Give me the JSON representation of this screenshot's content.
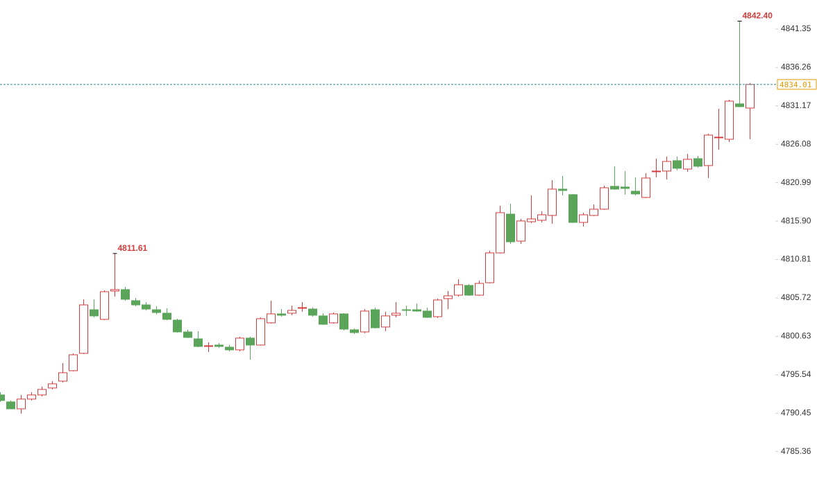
{
  "chart_data": {
    "type": "candlestick",
    "up_color": "#d23c3c",
    "down_color": "#5aa55a",
    "ohlc": [
      [
        4792.87,
        4793.23,
        4791.95,
        4792.13
      ],
      [
        4791.95,
        4792.13,
        4791.03,
        4791.03
      ],
      [
        4791.03,
        4792.87,
        4790.39,
        4792.32
      ],
      [
        4792.32,
        4793.23,
        4792.13,
        4792.87
      ],
      [
        4792.87,
        4793.97,
        4792.68,
        4793.6
      ],
      [
        4793.79,
        4794.7,
        4793.6,
        4794.34
      ],
      [
        4794.7,
        4797.09,
        4794.52,
        4795.81
      ],
      [
        4796.08,
        4798.38,
        4795.99,
        4798.19
      ],
      [
        4798.38,
        4805.54,
        4798.28,
        4804.8
      ],
      [
        4804.16,
        4805.54,
        4803.15,
        4803.34
      ],
      [
        4802.88,
        4806.73,
        4802.78,
        4806.55
      ],
      [
        4806.64,
        4811.61,
        4805.91,
        4806.83
      ],
      [
        4806.83,
        4807.19,
        4805.36,
        4805.54
      ],
      [
        4805.36,
        4805.72,
        4804.62,
        4804.8
      ],
      [
        4804.8,
        4805.17,
        4804.07,
        4804.25
      ],
      [
        4804.16,
        4804.62,
        4803.52,
        4803.79
      ],
      [
        4803.7,
        4804.35,
        4802.78,
        4802.88
      ],
      [
        4802.78,
        4802.97,
        4801.13,
        4801.22
      ],
      [
        4801.22,
        4801.5,
        4800.4,
        4800.49
      ],
      [
        4800.3,
        4801.32,
        4799.2,
        4799.29
      ],
      [
        4799.39,
        4799.85,
        4798.56,
        4799.39
      ],
      [
        4799.48,
        4799.75,
        4799.11,
        4799.29
      ],
      [
        4799.2,
        4799.48,
        4798.65,
        4798.84
      ],
      [
        4798.84,
        4800.58,
        4798.65,
        4800.4
      ],
      [
        4800.4,
        4800.58,
        4797.55,
        4799.48
      ],
      [
        4799.48,
        4803.15,
        4799.39,
        4802.97
      ],
      [
        4802.42,
        4805.36,
        4802.32,
        4803.61
      ],
      [
        4803.61,
        4804.25,
        4803.24,
        4803.43
      ],
      [
        4803.7,
        4804.71,
        4803.43,
        4804.07
      ],
      [
        4804.35,
        4805.17,
        4803.89,
        4804.44
      ],
      [
        4804.25,
        4804.44,
        4803.24,
        4803.43
      ],
      [
        4803.34,
        4803.7,
        4802.14,
        4802.23
      ],
      [
        4802.42,
        4803.79,
        4802.32,
        4803.61
      ],
      [
        4803.61,
        4803.7,
        4801.41,
        4801.59
      ],
      [
        4801.5,
        4801.68,
        4800.95,
        4801.13
      ],
      [
        4801.22,
        4804.25,
        4801.04,
        4803.98
      ],
      [
        4804.16,
        4804.44,
        4801.68,
        4801.77
      ],
      [
        4801.87,
        4803.89,
        4801.32,
        4803.34
      ],
      [
        4803.43,
        4805.17,
        4803.15,
        4803.7
      ],
      [
        4804.16,
        4804.71,
        4803.34,
        4804.07
      ],
      [
        4804.16,
        4804.99,
        4803.89,
        4803.98
      ],
      [
        4803.98,
        4804.44,
        4803.06,
        4803.15
      ],
      [
        4803.24,
        4805.63,
        4803.06,
        4805.45
      ],
      [
        4805.63,
        4806.64,
        4804.25,
        4806
      ],
      [
        4806.09,
        4808.2,
        4805.91,
        4807.47
      ],
      [
        4807.38,
        4807.56,
        4806,
        4806.09
      ],
      [
        4806.09,
        4808.02,
        4806,
        4807.65
      ],
      [
        4807.74,
        4811.97,
        4807.65,
        4811.69
      ],
      [
        4811.69,
        4817.94,
        4811.6,
        4817.02
      ],
      [
        4816.83,
        4818.21,
        4812.89,
        4813.16
      ],
      [
        4813.25,
        4816.19,
        4812.89,
        4815.92
      ],
      [
        4815.82,
        4819.31,
        4815.64,
        4816.19
      ],
      [
        4816.01,
        4817.2,
        4815.73,
        4816.74
      ],
      [
        4816.65,
        4821.33,
        4815.55,
        4820.14
      ],
      [
        4820.14,
        4821.89,
        4819.31,
        4819.96
      ],
      [
        4819.41,
        4819.5,
        4815.64,
        4815.73
      ],
      [
        4815.73,
        4817.02,
        4815.18,
        4816.74
      ],
      [
        4816.65,
        4818.12,
        4816.56,
        4817.48
      ],
      [
        4817.48,
        4820.6,
        4817.39,
        4820.32
      ],
      [
        4820.51,
        4823.17,
        4820.05,
        4820.14
      ],
      [
        4820.42,
        4822.53,
        4819.41,
        4820.23
      ],
      [
        4819.86,
        4821.7,
        4819.31,
        4819.5
      ],
      [
        4819.04,
        4822.25,
        4818.95,
        4821.61
      ],
      [
        4822.44,
        4824.18,
        4821.7,
        4822.53
      ],
      [
        4822.53,
        4824.46,
        4821.43,
        4823.81
      ],
      [
        4823.91,
        4824.46,
        4822.62,
        4822.9
      ],
      [
        4822.8,
        4824.82,
        4822.44,
        4824.09
      ],
      [
        4824.18,
        4824.55,
        4822.99,
        4823.17
      ],
      [
        4823.26,
        4827.49,
        4821.61,
        4827.3
      ],
      [
        4826.94,
        4830.79,
        4825.37,
        4827.03
      ],
      [
        4826.75,
        4831.99,
        4826.38,
        4831.8
      ],
      [
        4831.44,
        4842.4,
        4830.98,
        4831.07
      ],
      [
        4830.88,
        4834.2,
        4826.75,
        4834.01
      ]
    ],
    "ylim": [
      4781.2,
      4845.2
    ],
    "yticks": [
      4785.36,
      4790.45,
      4795.54,
      4800.63,
      4805.72,
      4810.81,
      {
        "value": 4815.9,
        "label": "4815.90"
      },
      4820.99,
      4826.08,
      4831.17,
      4836.26,
      4841.35
    ],
    "annotations": [
      {
        "label": "4842.40",
        "value": 4842.4
      },
      {
        "label": "4811.61",
        "value": 4811.61
      }
    ],
    "last_price": {
      "value": 4834.01,
      "label": "4834.01"
    },
    "last_price_color": "#2a8a9a",
    "last_label_color": "#e69a00"
  }
}
